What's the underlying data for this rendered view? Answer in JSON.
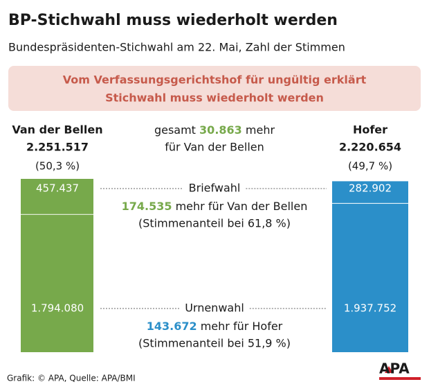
{
  "chart_data": {
    "type": "stacked-bar",
    "title": "BP-Stichwahl muss wiederholt werden",
    "subtitle": "Bundespräsidenten-Stichwahl am 22. Mai, Zahl der Stimmen",
    "banner": [
      "Vom Verfassungsgerichtshof für ungültig erklärt",
      "Stichwahl muss wiederholt werden"
    ],
    "categories": [
      "Briefwahl",
      "Urnenwahl"
    ],
    "series": [
      {
        "name": "Van der Bellen",
        "color": "#77a94b",
        "total": {
          "value": 2251517,
          "label": "2.251.517"
        },
        "share": {
          "value": 50.3,
          "label": "(50,3 %)"
        },
        "values": [
          457437,
          1794080
        ],
        "value_labels": [
          "457.437",
          "1.794.080"
        ]
      },
      {
        "name": "Hofer",
        "color": "#2b8fc9",
        "total": {
          "value": 2220654,
          "label": "2.220.654"
        },
        "share": {
          "value": 49.7,
          "label": "(49,7 %)"
        },
        "values": [
          282902,
          1937752
        ],
        "value_labels": [
          "282.902",
          "1.937.752"
        ]
      }
    ],
    "overall": {
      "prefix": "gesamt",
      "difference": {
        "value": 30863,
        "label": "30.863"
      },
      "suffix": "mehr",
      "line2": "für Van der Bellen",
      "color": "#77a94b"
    },
    "annotations": [
      {
        "difference": {
          "value": 174535,
          "label": "174.535"
        },
        "text": "mehr für Van der Bellen",
        "color": "#77a94b",
        "share": {
          "value": 61.8,
          "label": "(Stimmenanteil bei 61,8 %)"
        }
      },
      {
        "difference": {
          "value": 143672,
          "label": "143.672"
        },
        "text": "mehr für Hofer",
        "color": "#2b8fc9",
        "share": {
          "value": 51.9,
          "label": "(Stimmenanteil bei 51,9 %)"
        }
      }
    ],
    "source": "Grafik: © APA, Quelle: APA/BMI",
    "logo": "APA"
  }
}
